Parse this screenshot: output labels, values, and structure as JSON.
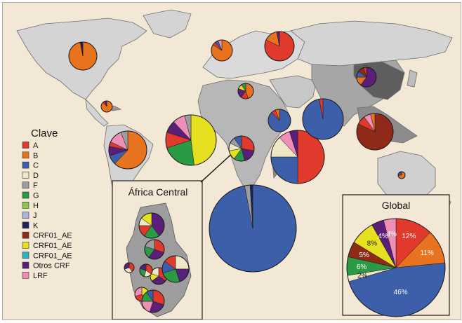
{
  "legend": {
    "title": "Clave",
    "items": [
      {
        "label": "A",
        "color": "#e03a2c"
      },
      {
        "label": "B",
        "color": "#e8731f"
      },
      {
        "label": "C",
        "color": "#3d5ea8"
      },
      {
        "label": "D",
        "color": "#efe6c6"
      },
      {
        "label": "F",
        "color": "#9d9d9d"
      },
      {
        "label": "G",
        "color": "#2a9a45"
      },
      {
        "label": "H",
        "color": "#8cc84a"
      },
      {
        "label": "J",
        "color": "#a8b6dc"
      },
      {
        "label": "K",
        "color": "#1c2255"
      },
      {
        "label": "CRF01_AE",
        "color": "#8e2a17"
      },
      {
        "label": "CRF01_AE",
        "color": "#e6e021"
      },
      {
        "label": "CRF01_AE",
        "color": "#2fb3c0"
      },
      {
        "label": "Otros CRF",
        "color": "#5a1f78"
      },
      {
        "label": "LRF",
        "color": "#ef8fb8"
      }
    ]
  },
  "central_africa_inset": {
    "title": "África Central"
  },
  "global_inset": {
    "title": "Global",
    "labels": [
      "12%",
      "11%",
      "46%",
      "2%",
      "6%",
      "5%",
      "8%",
      "4%",
      "4%"
    ],
    "slices": [
      {
        "subtype": "A",
        "value": 12
      },
      {
        "subtype": "B",
        "value": 11
      },
      {
        "subtype": "C",
        "value": 46
      },
      {
        "subtype": "D",
        "value": 2
      },
      {
        "subtype": "G",
        "value": 6
      },
      {
        "subtype": "CRF01_AE (#8e2a17)",
        "value": 5
      },
      {
        "subtype": "CRF01_AE (#e6e021)",
        "value": 8
      },
      {
        "subtype": "Otros CRF",
        "value": 4
      },
      {
        "subtype": "LRF",
        "value": 4
      }
    ]
  },
  "regional_pies": [
    {
      "region": "north-america",
      "slices": [
        {
          "c": "#e8731f",
          "v": 97
        },
        {
          "c": "#1c2255",
          "v": 2
        },
        {
          "c": "#5a1f78",
          "v": 1
        }
      ]
    },
    {
      "region": "caribbean",
      "slices": [
        {
          "c": "#e8731f",
          "v": 88
        },
        {
          "c": "#e03a2c",
          "v": 6
        },
        {
          "c": "#5a1f78",
          "v": 6
        }
      ]
    },
    {
      "region": "south-america",
      "slices": [
        {
          "c": "#e8731f",
          "v": 62
        },
        {
          "c": "#3d5ea8",
          "v": 8
        },
        {
          "c": "#5a1f78",
          "v": 8
        },
        {
          "c": "#e03a2c",
          "v": 4
        },
        {
          "c": "#ef8fb8",
          "v": 12
        },
        {
          "c": "#9d9d9d",
          "v": 6
        }
      ]
    },
    {
      "region": "western-europe",
      "slices": [
        {
          "c": "#e8731f",
          "v": 84
        },
        {
          "c": "#e03a2c",
          "v": 5
        },
        {
          "c": "#3d5ea8",
          "v": 5
        },
        {
          "c": "#ef8fb8",
          "v": 6
        }
      ]
    },
    {
      "region": "eastern-europe",
      "slices": [
        {
          "c": "#e03a2c",
          "v": 82
        },
        {
          "c": "#e8731f",
          "v": 15
        },
        {
          "c": "#5a1f78",
          "v": 3
        }
      ]
    },
    {
      "region": "north-africa",
      "slices": [
        {
          "c": "#e8731f",
          "v": 45
        },
        {
          "c": "#e03a2c",
          "v": 15
        },
        {
          "c": "#5a1f78",
          "v": 20
        },
        {
          "c": "#e6e021",
          "v": 10
        },
        {
          "c": "#2a9a45",
          "v": 10
        }
      ]
    },
    {
      "region": "west-africa",
      "slices": [
        {
          "c": "#e6e021",
          "v": 48
        },
        {
          "c": "#2a9a45",
          "v": 22
        },
        {
          "c": "#e03a2c",
          "v": 10
        },
        {
          "c": "#5a1f78",
          "v": 8
        },
        {
          "c": "#ef8fb8",
          "v": 8
        },
        {
          "c": "#9d9d9d",
          "v": 4
        }
      ]
    },
    {
      "region": "central-africa",
      "slices": [
        {
          "c": "#e03a2c",
          "v": 28
        },
        {
          "c": "#5a1f78",
          "v": 18
        },
        {
          "c": "#2a9a45",
          "v": 14
        },
        {
          "c": "#e6e021",
          "v": 12
        },
        {
          "c": "#efe6c6",
          "v": 10
        },
        {
          "c": "#9d9d9d",
          "v": 8
        },
        {
          "c": "#3d5ea8",
          "v": 10
        }
      ]
    },
    {
      "region": "east-africa",
      "slices": [
        {
          "c": "#e03a2c",
          "v": 50
        },
        {
          "c": "#3d5ea8",
          "v": 25
        },
        {
          "c": "#efe6c6",
          "v": 13
        },
        {
          "c": "#ef8fb8",
          "v": 7
        },
        {
          "c": "#5a1f78",
          "v": 5
        }
      ]
    },
    {
      "region": "middle-east",
      "slices": [
        {
          "c": "#3d5ea8",
          "v": 88
        },
        {
          "c": "#e03a2c",
          "v": 6
        },
        {
          "c": "#e8731f",
          "v": 6
        }
      ]
    },
    {
      "region": "south-asia",
      "slices": [
        {
          "c": "#3d5ea8",
          "v": 97
        },
        {
          "c": "#e03a2c",
          "v": 3
        }
      ]
    },
    {
      "region": "east-asia",
      "slices": [
        {
          "c": "#5a1f78",
          "v": 60
        },
        {
          "c": "#e8731f",
          "v": 15
        },
        {
          "c": "#3d5ea8",
          "v": 10
        },
        {
          "c": "#8e2a17",
          "v": 10
        },
        {
          "c": "#e03a2c",
          "v": 5
        }
      ]
    },
    {
      "region": "southeast-asia",
      "slices": [
        {
          "c": "#8e2a17",
          "v": 82
        },
        {
          "c": "#e03a2c",
          "v": 8
        },
        {
          "c": "#ef8fb8",
          "v": 6
        },
        {
          "c": "#e8731f",
          "v": 4
        }
      ]
    },
    {
      "region": "australia",
      "slices": [
        {
          "c": "#e8731f",
          "v": 75
        },
        {
          "c": "#3d5ea8",
          "v": 20
        },
        {
          "c": "#e03a2c",
          "v": 5
        }
      ]
    },
    {
      "region": "southern-africa",
      "slices": [
        {
          "c": "#3d5ea8",
          "v": 97
        },
        {
          "c": "#9d9d9d",
          "v": 2
        },
        {
          "c": "#1c2255",
          "v": 1
        }
      ]
    }
  ],
  "central_africa_pies": [
    {
      "slices": [
        {
          "c": "#5a1f78",
          "v": 40
        },
        {
          "c": "#2a9a45",
          "v": 20
        },
        {
          "c": "#e03a2c",
          "v": 15
        },
        {
          "c": "#efe6c6",
          "v": 10
        },
        {
          "c": "#e6e021",
          "v": 15
        }
      ]
    },
    {
      "slices": [
        {
          "c": "#e03a2c",
          "v": 30
        },
        {
          "c": "#5a1f78",
          "v": 30
        },
        {
          "c": "#2a9a45",
          "v": 20
        },
        {
          "c": "#9d9d9d",
          "v": 20
        }
      ]
    },
    {
      "slices": [
        {
          "c": "#e03a2c",
          "v": 35
        },
        {
          "c": "#5a1f78",
          "v": 30
        },
        {
          "c": "#e6e021",
          "v": 15
        },
        {
          "c": "#efe6c6",
          "v": 20
        }
      ]
    },
    {
      "slices": [
        {
          "c": "#e03a2c",
          "v": 35
        },
        {
          "c": "#efe6c6",
          "v": 20
        },
        {
          "c": "#2a9a45",
          "v": 25
        },
        {
          "c": "#5a1f78",
          "v": 20
        }
      ]
    },
    {
      "slices": [
        {
          "c": "#efe6c6",
          "v": 25
        },
        {
          "c": "#5a1f78",
          "v": 20
        },
        {
          "c": "#2a9a45",
          "v": 25
        },
        {
          "c": "#3d5ea8",
          "v": 15
        },
        {
          "c": "#e03a2c",
          "v": 15
        }
      ]
    },
    {
      "slices": [
        {
          "c": "#e03a2c",
          "v": 40
        },
        {
          "c": "#efe6c6",
          "v": 30
        },
        {
          "c": "#5a1f78",
          "v": 30
        }
      ]
    },
    {
      "slices": [
        {
          "c": "#e6e021",
          "v": 40
        },
        {
          "c": "#e03a2c",
          "v": 30
        },
        {
          "c": "#ef8fb8",
          "v": 30
        }
      ]
    },
    {
      "slices": [
        {
          "c": "#e03a2c",
          "v": 30
        },
        {
          "c": "#5a1f78",
          "v": 25
        },
        {
          "c": "#ef8fb8",
          "v": 20
        },
        {
          "c": "#2a9a45",
          "v": 15
        },
        {
          "c": "#3d5ea8",
          "v": 10
        }
      ]
    }
  ]
}
